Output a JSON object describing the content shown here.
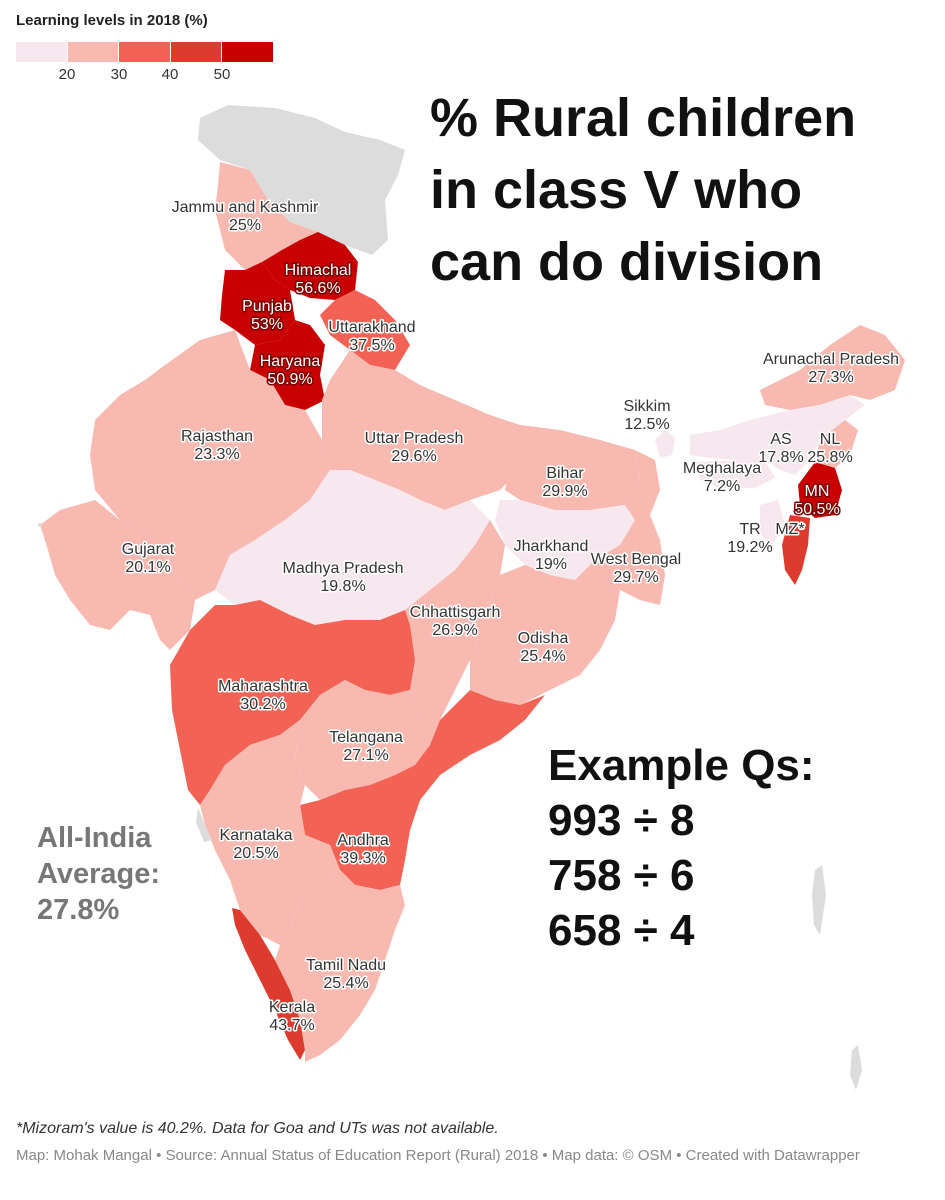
{
  "legend": {
    "title": "Learning levels in 2018 (%)",
    "ticks": [
      "20",
      "30",
      "40",
      "50"
    ],
    "colors": [
      "#f6e8ee",
      "#f7b9b0",
      "#f26355",
      "#dd3b2d",
      "#c90000"
    ]
  },
  "title": {
    "line1": "% Rural children",
    "line2": "in class V who",
    "line3": "can do division"
  },
  "examples": {
    "heading": "Example Qs:",
    "q1": "993 ÷ 8",
    "q2": "758 ÷ 6",
    "q3": "658 ÷ 4"
  },
  "average": {
    "line1": "All-India",
    "line2": "Average:",
    "line3": "27.8%"
  },
  "footnote": "*Mizoram's value is 40.2%. Data for Goa and UTs was not available.",
  "credits": "Map: Mohak Mangal • Source: Annual Status of Education Report (Rural) 2018 • Map data: © OSM • Created with Datawrapper",
  "states": {
    "jk": {
      "name": "Jammu and Kashmir",
      "value": "25%"
    },
    "hp": {
      "name": "Himachal",
      "value": "56.6%"
    },
    "pb": {
      "name": "Punjab",
      "value": "53%"
    },
    "uk": {
      "name": "Uttarakhand",
      "value": "37.5%"
    },
    "hr": {
      "name": "Haryana",
      "value": "50.9%"
    },
    "rj": {
      "name": "Rajasthan",
      "value": "23.3%"
    },
    "up": {
      "name": "Uttar Pradesh",
      "value": "29.6%"
    },
    "br": {
      "name": "Bihar",
      "value": "29.9%"
    },
    "sk": {
      "name": "Sikkim",
      "value": "12.5%"
    },
    "ar": {
      "name": "Arunachal Pradesh",
      "value": "27.3%"
    },
    "as": {
      "name": "AS",
      "value": "17.8%"
    },
    "nl": {
      "name": "NL",
      "value": "25.8%"
    },
    "ml": {
      "name": "Meghalaya",
      "value": "7.2%"
    },
    "mn": {
      "name": "MN",
      "value": "50.5%"
    },
    "tr": {
      "name": "TR",
      "value": "19.2%"
    },
    "mz": {
      "name": "MZ*",
      "value": ""
    },
    "gj": {
      "name": "Gujarat",
      "value": "20.1%"
    },
    "mp": {
      "name": "Madhya Pradesh",
      "value": "19.8%"
    },
    "jh": {
      "name": "Jharkhand",
      "value": "19%"
    },
    "wb": {
      "name": "West Bengal",
      "value": "29.7%"
    },
    "cg": {
      "name": "Chhattisgarh",
      "value": "26.9%"
    },
    "od": {
      "name": "Odisha",
      "value": "25.4%"
    },
    "mh": {
      "name": "Maharashtra",
      "value": "30.2%"
    },
    "tg": {
      "name": "Telangana",
      "value": "27.1%"
    },
    "ka": {
      "name": "Karnataka",
      "value": "20.5%"
    },
    "ap": {
      "name": "Andhra",
      "value": "39.3%"
    },
    "tn": {
      "name": "Tamil Nadu",
      "value": "25.4%"
    },
    "kl": {
      "name": "Kerala",
      "value": "43.7%"
    }
  }
}
